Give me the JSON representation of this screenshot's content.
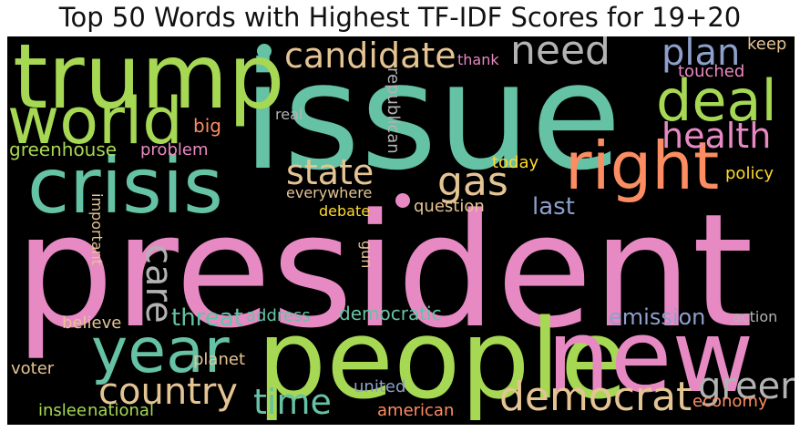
{
  "title": "Top 50 Words with Highest TF-IDF Scores for 19+20",
  "colors": {
    "teal": "#66c2a5",
    "orange": "#fc8d62",
    "blue": "#8da0cb",
    "pink": "#e78ac3",
    "green": "#a6d854",
    "yellow": "#ffd92f",
    "tan": "#e5c494",
    "gray": "#b3b3b3"
  },
  "words": [
    {
      "text": "issue",
      "color": "#66c2a5"
    },
    {
      "text": "president",
      "color": "#e78ac3"
    },
    {
      "text": "people",
      "color": "#a6d854"
    },
    {
      "text": "trump",
      "color": "#a6d854"
    },
    {
      "text": "crisis",
      "color": "#66c2a5"
    },
    {
      "text": "new",
      "color": "#e78ac3"
    },
    {
      "text": "world",
      "color": "#a6d854"
    },
    {
      "text": "right",
      "color": "#fc8d62"
    },
    {
      "text": "year",
      "color": "#66c2a5"
    },
    {
      "text": "deal",
      "color": "#a6d854"
    },
    {
      "text": "democrat",
      "color": "#e5c494"
    },
    {
      "text": "candidate",
      "color": "#e5c494"
    },
    {
      "text": "need",
      "color": "#b3b3b3"
    },
    {
      "text": "plan",
      "color": "#8da0cb"
    },
    {
      "text": "health",
      "color": "#e78ac3"
    },
    {
      "text": "state",
      "color": "#e5c494"
    },
    {
      "text": "gas",
      "color": "#e5c494"
    },
    {
      "text": "care",
      "color": "#b3b3b3"
    },
    {
      "text": "country",
      "color": "#e5c494"
    },
    {
      "text": "time",
      "color": "#66c2a5"
    },
    {
      "text": "green",
      "color": "#b3b3b3"
    },
    {
      "text": "threat",
      "color": "#66c2a5"
    },
    {
      "text": "emission",
      "color": "#8da0cb"
    },
    {
      "text": "last",
      "color": "#8da0cb"
    },
    {
      "text": "democratic",
      "color": "#66c2a5"
    },
    {
      "text": "greenhouse",
      "color": "#a6d854"
    },
    {
      "text": "big",
      "color": "#fc8d62"
    },
    {
      "text": "problem",
      "color": "#e78ac3"
    },
    {
      "text": "real",
      "color": "#b3b3b3"
    },
    {
      "text": "republican",
      "color": "#b3b3b3"
    },
    {
      "text": "thank",
      "color": "#e78ac3"
    },
    {
      "text": "keep",
      "color": "#e5c494"
    },
    {
      "text": "touched",
      "color": "#e78ac3"
    },
    {
      "text": "today",
      "color": "#ffd92f"
    },
    {
      "text": "policy",
      "color": "#ffd92f"
    },
    {
      "text": "everywhere",
      "color": "#e5c494"
    },
    {
      "text": "debate",
      "color": "#ffd92f"
    },
    {
      "text": "question",
      "color": "#e5c494"
    },
    {
      "text": "important",
      "color": "#e5c494"
    },
    {
      "text": "gun",
      "color": "#e5c494"
    },
    {
      "text": "believe",
      "color": "#e5c494"
    },
    {
      "text": "address",
      "color": "#66c2a5"
    },
    {
      "text": "action",
      "color": "#b3b3b3"
    },
    {
      "text": "voter",
      "color": "#e5c494"
    },
    {
      "text": "planet",
      "color": "#e5c494"
    },
    {
      "text": "united",
      "color": "#8da0cb"
    },
    {
      "text": "economy",
      "color": "#fc8d62"
    },
    {
      "text": "inslee",
      "color": "#a6d854"
    },
    {
      "text": "national",
      "color": "#a6d854"
    },
    {
      "text": "american",
      "color": "#fc8d62"
    }
  ]
}
